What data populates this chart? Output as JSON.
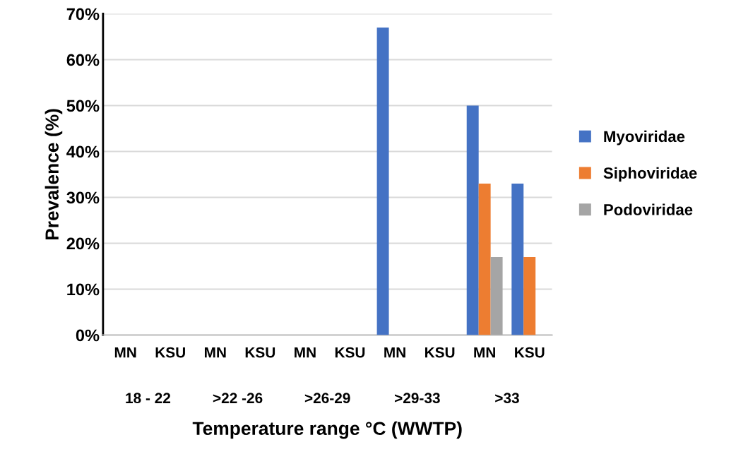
{
  "chart_data": {
    "type": "bar",
    "xlabel": "Temperature range °C (WWTP)",
    "ylabel": "Prevalence (%)",
    "categories": [
      "MN",
      "KSU",
      "MN",
      "KSU",
      "MN",
      "KSU",
      "MN",
      "KSU",
      "MN",
      "KSU"
    ],
    "series": [
      {
        "name": "Myoviridae",
        "color": "#4472c4",
        "values": [
          0,
          0,
          0,
          0,
          0,
          0,
          67,
          0,
          50,
          33
        ]
      },
      {
        "name": "Siphoviridae",
        "color": "#ed7d31",
        "values": [
          0,
          0,
          0,
          0,
          0,
          0,
          0,
          0,
          33,
          17
        ]
      },
      {
        "name": "Podoviridae",
        "color": "#a5a5a5",
        "values": [
          0,
          0,
          0,
          0,
          0,
          0,
          0,
          0,
          17,
          0
        ]
      }
    ],
    "annotations": [
      "18 - 22",
      ">22 -26",
      ">26-29",
      ">29-33",
      ">33"
    ],
    "ylim": [
      0,
      70
    ],
    "yticks": [
      {
        "value": 0,
        "label": "0%"
      },
      {
        "value": 10,
        "label": "10%"
      },
      {
        "value": 20,
        "label": "20%"
      },
      {
        "value": 30,
        "label": "30%"
      },
      {
        "value": 40,
        "label": "40%"
      },
      {
        "value": 50,
        "label": "50%"
      },
      {
        "value": 60,
        "label": "60%"
      },
      {
        "value": 70,
        "label": "70%"
      }
    ],
    "grid": "y",
    "legend": "right"
  }
}
